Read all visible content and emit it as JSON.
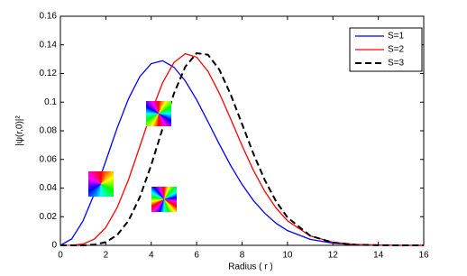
{
  "chart_data": {
    "type": "line",
    "x_label": "Radius ( r )",
    "y_label": "|ψ(r,0)|²",
    "x": [
      0,
      0.5,
      1,
      1.5,
      2,
      2.5,
      3,
      3.5,
      4,
      4.5,
      5,
      5.5,
      6,
      6.5,
      7,
      7.5,
      8,
      8.5,
      9,
      9.5,
      10,
      11,
      12,
      13,
      14,
      15,
      16
    ],
    "series": [
      {
        "name": "S=1",
        "color": "#0000ff",
        "dash": false,
        "values": [
          0,
          0.0045,
          0.0172,
          0.0363,
          0.0589,
          0.082,
          0.1024,
          0.1179,
          0.1269,
          0.1289,
          0.1244,
          0.1148,
          0.1016,
          0.0863,
          0.0706,
          0.0557,
          0.0425,
          0.0313,
          0.0224,
          0.0154,
          0.0103,
          0.0042,
          0.0015,
          0.0005,
          0.0001,
          0,
          0
        ]
      },
      {
        "name": "S=2",
        "color": "#ff0000",
        "dash": false,
        "values": [
          0,
          0.0001,
          0.0009,
          0.0044,
          0.0125,
          0.0264,
          0.0459,
          0.0692,
          0.0929,
          0.1135,
          0.1277,
          0.1338,
          0.1314,
          0.1215,
          0.1062,
          0.0882,
          0.0696,
          0.0524,
          0.0377,
          0.026,
          0.0171,
          0.0066,
          0.0021,
          0.0006,
          0.0002,
          0,
          0
        ]
      },
      {
        "name": "S=3",
        "color": "#000000",
        "dash": true,
        "values": [
          0,
          0,
          0,
          0.0005,
          0.0022,
          0.0072,
          0.0172,
          0.0337,
          0.0561,
          0.0816,
          0.106,
          0.1247,
          0.1342,
          0.1331,
          0.1227,
          0.1053,
          0.0847,
          0.064,
          0.0456,
          0.0306,
          0.0195,
          0.0067,
          0.0019,
          0.0004,
          0.0001,
          0,
          0
        ]
      }
    ],
    "xlim": [
      0,
      16
    ],
    "xticks": [
      0,
      2,
      4,
      6,
      8,
      10,
      12,
      14,
      16
    ],
    "ylim": [
      0,
      0.16
    ],
    "yticks": [
      0,
      0.02,
      0.04,
      0.06,
      0.08,
      0.1,
      0.12,
      0.14,
      0.16
    ],
    "legend": "top-right"
  }
}
